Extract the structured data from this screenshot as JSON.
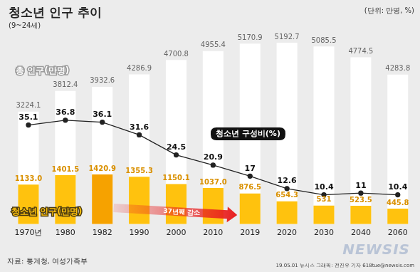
{
  "chart_data": {
    "type": "bar",
    "title": "청소년 인구 추이",
    "subtitle": "(9~24세)",
    "annotations": [
      "(단위: 만명, %)",
      "37년째 감소",
      "자료: 통계청, 여성가족부",
      "19.05.01 뉴시스 그래픽: 전진우 기자 618tue@newsis.com",
      "NEWSIS"
    ],
    "categories": [
      "1970년",
      "1980",
      "1982",
      "1990",
      "2000",
      "2010",
      "2019",
      "2020",
      "2030",
      "2040",
      "2060"
    ],
    "series": [
      {
        "name": "총 인구(만명)",
        "type": "bar",
        "color": "#ffffff",
        "values": [
          3224.1,
          3812.4,
          3932.6,
          4286.9,
          4700.8,
          4955.4,
          5170.9,
          5192.7,
          5085.5,
          4774.5,
          4283.8
        ]
      },
      {
        "name": "청소년 인구(만명)",
        "type": "bar",
        "color": "#ffc20e",
        "colors": [
          "#ffc20e",
          "#ffc20e",
          "#f6a200",
          "#ffc20e",
          "#ffc20e",
          "#ffc20e",
          "#ffc20e",
          "#ffc20e",
          "#ffc20e",
          "#ffc20e",
          "#ffc20e"
        ],
        "values": [
          1133.0,
          1401.5,
          1420.9,
          1355.3,
          1150.1,
          1037.0,
          876.5,
          654.3,
          531,
          523.5,
          445.8
        ],
        "value_labels": [
          "1133.0",
          "1401.5",
          "1420.9",
          "1355.3",
          "1150.1",
          "1037.0",
          "876.5",
          "654.3",
          "531",
          "523.5",
          "445.8"
        ]
      },
      {
        "name": "청소년 구성비(%)",
        "type": "line",
        "axis": "y2",
        "color": "#222222",
        "marker": "circle",
        "values": [
          35.1,
          36.8,
          36.1,
          31.6,
          24.5,
          20.9,
          17,
          12.6,
          10.4,
          11,
          10.4
        ]
      }
    ],
    "ylim": [
      0,
      5500
    ],
    "y2lim": [
      0,
      68
    ],
    "grid": false,
    "stacked": false,
    "data_labels": true,
    "tick_labels": "x"
  }
}
